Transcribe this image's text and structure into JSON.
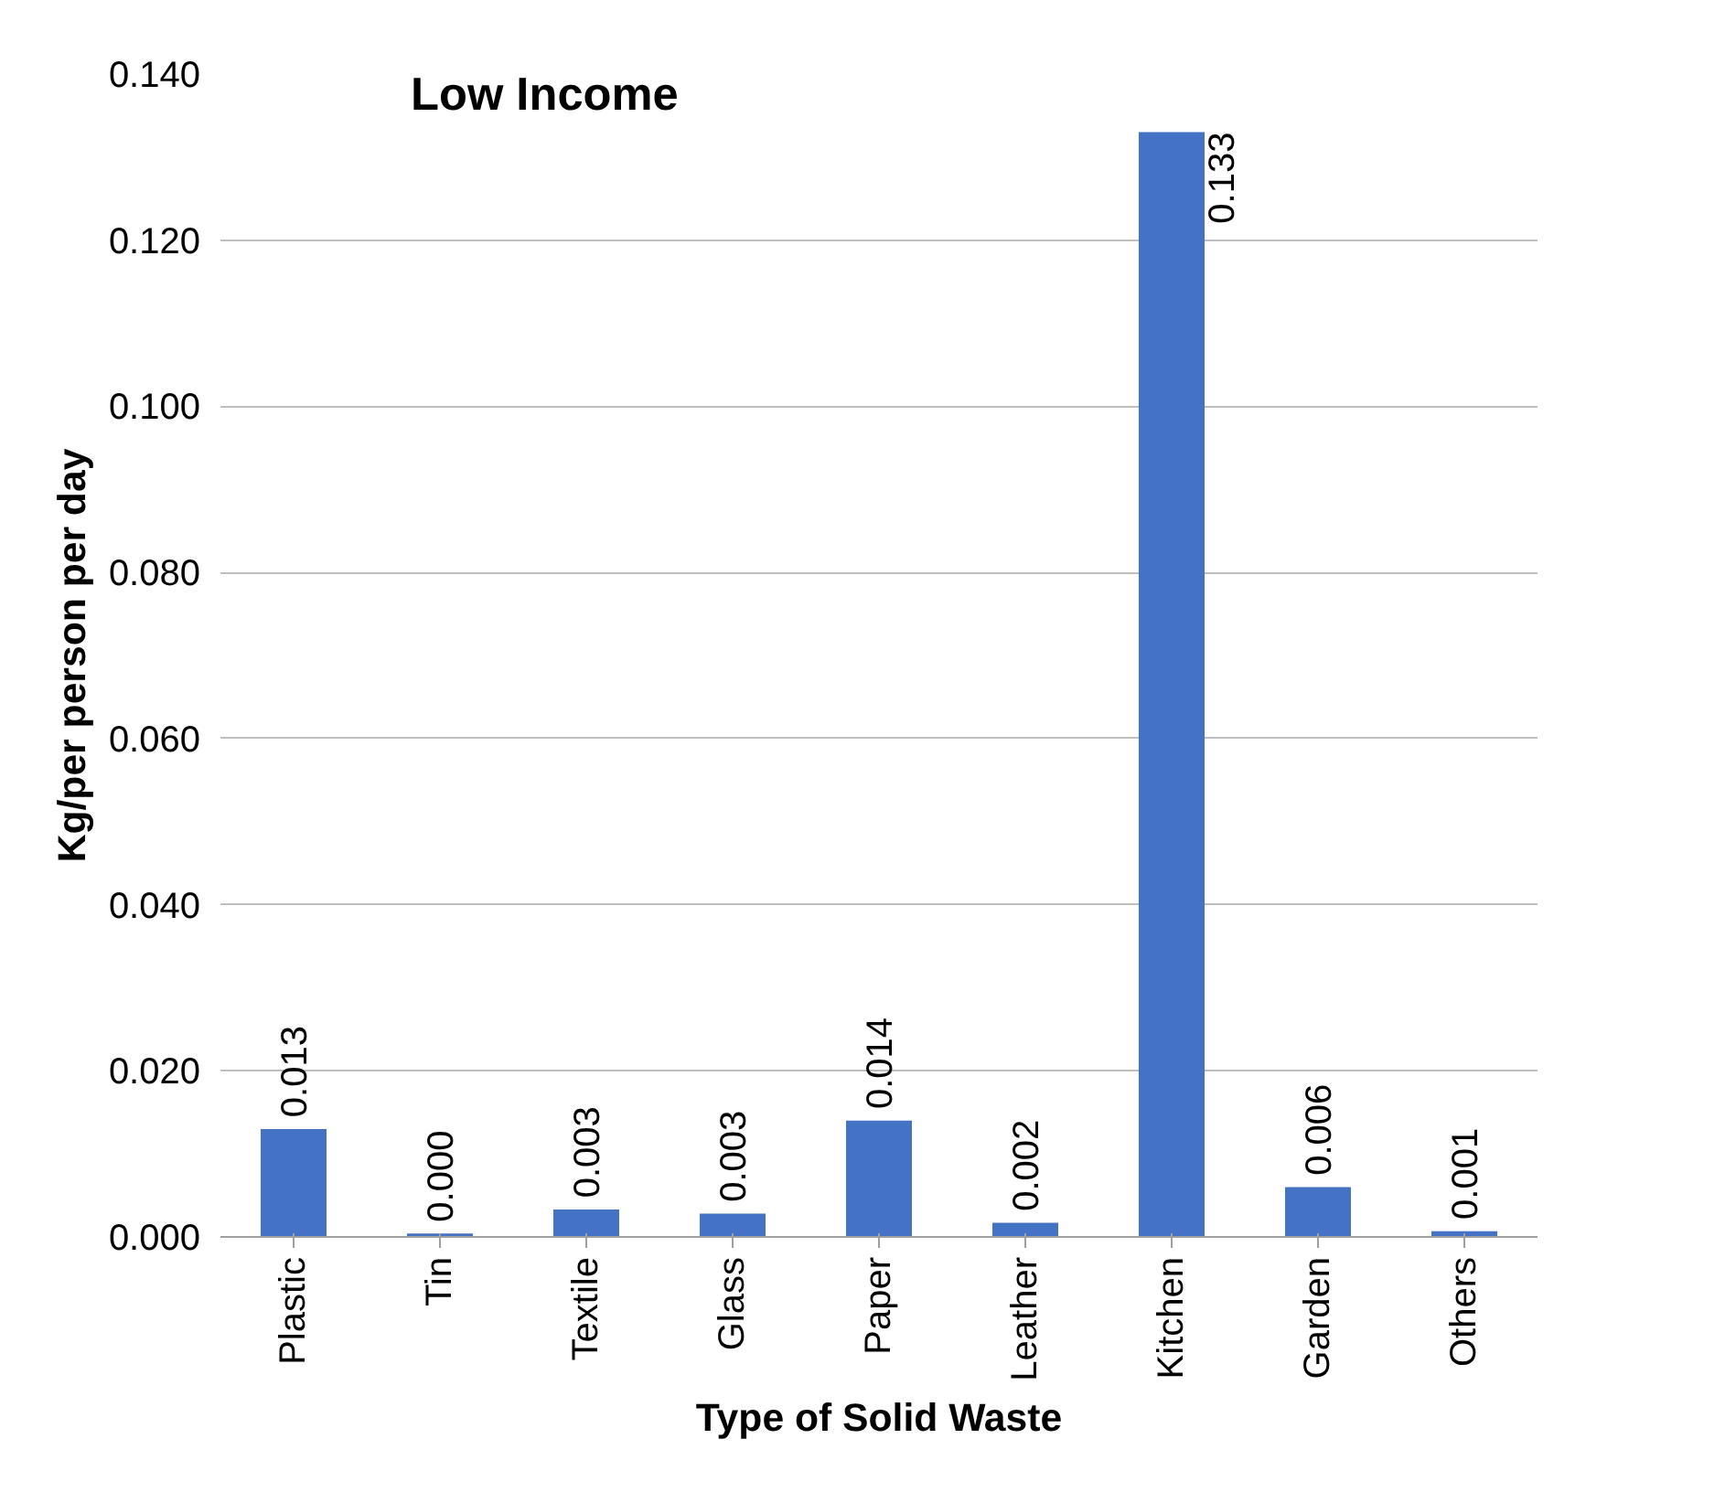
{
  "chart_data": {
    "type": "bar",
    "title": "Low Income",
    "xlabel": "Type of Solid Waste",
    "ylabel": "Kg/per person per day",
    "categories": [
      "Plastic",
      "Tin",
      "Textile",
      "Glass",
      "Paper",
      "Leather",
      "Kitchen",
      "Garden",
      "Others"
    ],
    "values": [
      0.013,
      0.0004,
      0.0033,
      0.0028,
      0.014,
      0.0017,
      0.133,
      0.006,
      0.0007
    ],
    "value_labels": [
      "0.013",
      "0.000",
      "0.003",
      "0.003",
      "0.014",
      "0.002",
      "0.133",
      "0.006",
      "0.001"
    ],
    "color": "#4472c4",
    "ylim": [
      0,
      0.14
    ],
    "yticks": [
      {
        "value": 0,
        "label": "0.000"
      },
      {
        "value": 0.02,
        "label": "0.020"
      },
      {
        "value": 0.04,
        "label": "0.040"
      },
      {
        "value": 0.06,
        "label": "0.060"
      },
      {
        "value": 0.08,
        "label": "0.080"
      },
      {
        "value": 0.1,
        "label": "0.100"
      },
      {
        "value": 0.12,
        "label": "0.120"
      },
      {
        "value": 0.14,
        "label": "0.140"
      }
    ],
    "grid": "y"
  }
}
